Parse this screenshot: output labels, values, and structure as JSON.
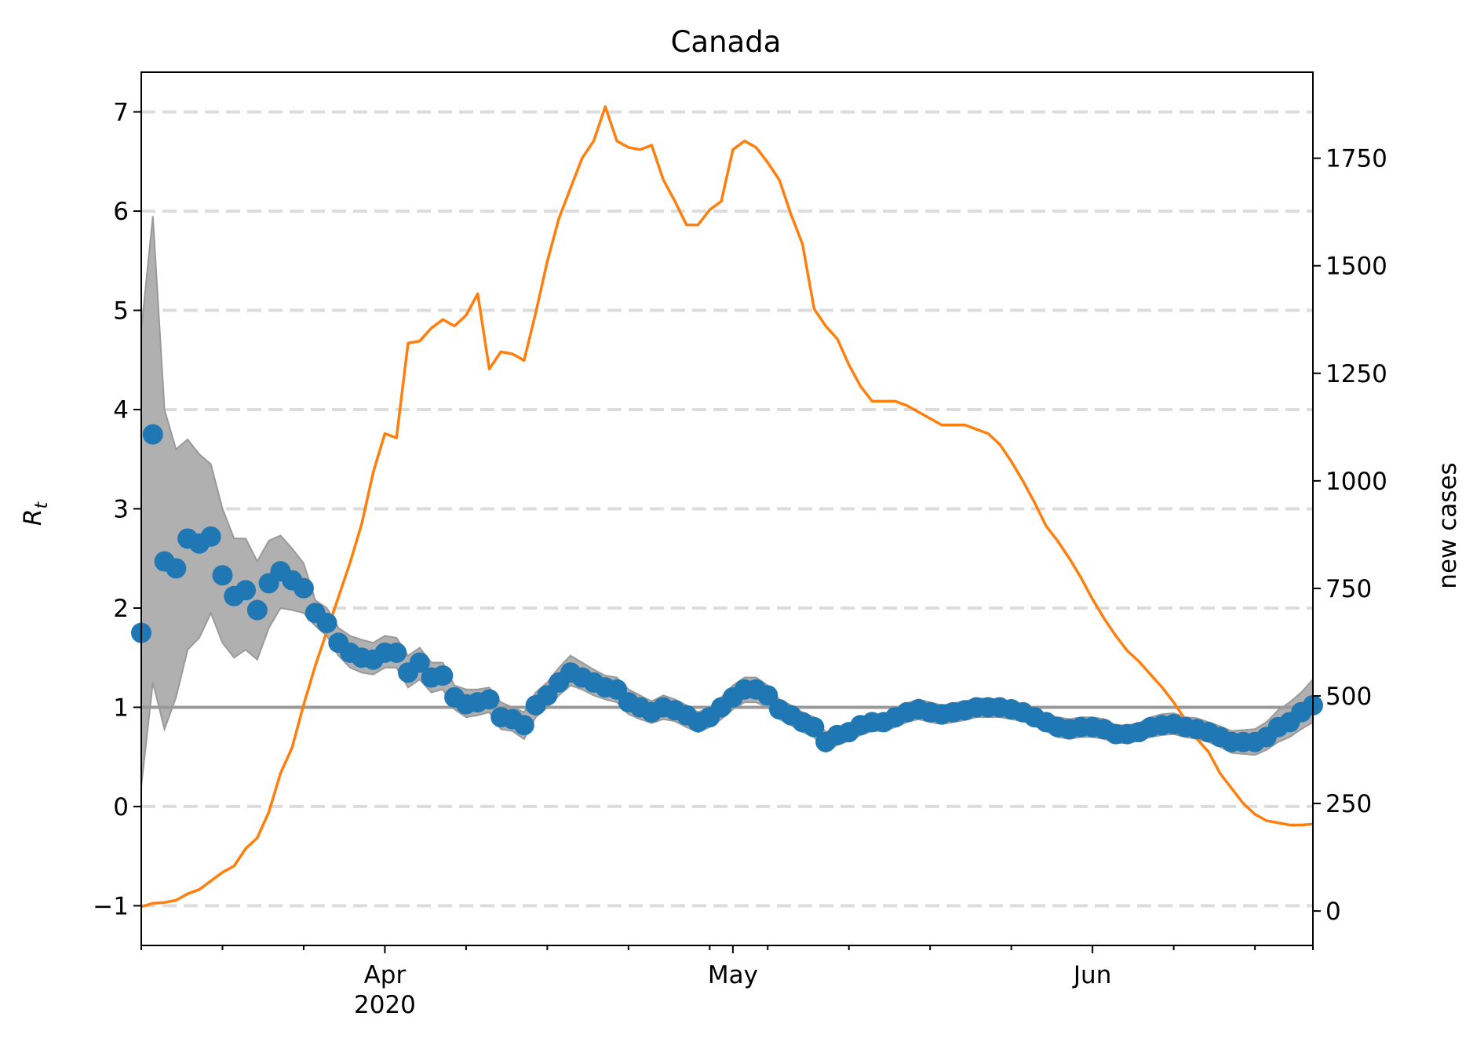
{
  "chart_data": {
    "type": "scatter",
    "title": "Canada",
    "ylabel_left": "R",
    "ylabel_left_subscript": "t",
    "ylabel_right": "new cases",
    "x_ticks": [
      {
        "label": "Apr",
        "sublabel": "2020",
        "day": 21
      },
      {
        "label": "May",
        "sublabel": "",
        "day": 51
      },
      {
        "label": "Jun",
        "sublabel": "",
        "day": 82
      }
    ],
    "x_minor_tick_days": [
      0,
      7,
      14,
      28,
      35,
      42,
      49,
      54,
      61,
      68,
      75,
      89,
      96,
      101
    ],
    "x_range_days": [
      0,
      101
    ],
    "start_date": "2020-03-10",
    "left_axis": {
      "ylim": [
        -1.4,
        7.4
      ],
      "ticks": [
        -1,
        0,
        1,
        2,
        3,
        4,
        5,
        6,
        7
      ],
      "tick_labels": [
        "−1",
        "0",
        "1",
        "2",
        "3",
        "4",
        "5",
        "6",
        "7"
      ]
    },
    "right_axis": {
      "ylim": [
        -80,
        1950
      ],
      "ticks": [
        0,
        250,
        500,
        750,
        1000,
        1250,
        1500,
        1750
      ],
      "tick_labels": [
        "0",
        "250",
        "500",
        "750",
        "1000",
        "1250",
        "1500",
        "1750"
      ]
    },
    "grid": "horizontal dashed at left-axis ticks",
    "reference_line": 1,
    "series": [
      {
        "kind": "scatter",
        "axis": "left",
        "color": "#1f77b4",
        "x_days": [
          0,
          1,
          2,
          3,
          4,
          5,
          6,
          7,
          8,
          9,
          10,
          11,
          12,
          13,
          14,
          15,
          16,
          17,
          18,
          19,
          20,
          21,
          22,
          23,
          24,
          25,
          26,
          27,
          28,
          29,
          30,
          31,
          32,
          33,
          34,
          35,
          36,
          37,
          38,
          39,
          40,
          41,
          42,
          43,
          44,
          45,
          46,
          47,
          48,
          49,
          50,
          51,
          52,
          53,
          54,
          55,
          56,
          57,
          58,
          59,
          60,
          61,
          62,
          63,
          64,
          65,
          66,
          67,
          68,
          69,
          70,
          71,
          72,
          73,
          74,
          75,
          76,
          77,
          78,
          79,
          80,
          81,
          82,
          83,
          84,
          85,
          86,
          87,
          88,
          89,
          90,
          91,
          92,
          93,
          94,
          95,
          96,
          97,
          98,
          99,
          100,
          101
        ],
        "values": [
          1.75,
          3.75,
          2.47,
          2.4,
          2.7,
          2.65,
          2.72,
          2.33,
          2.12,
          2.18,
          1.98,
          2.25,
          2.37,
          2.28,
          2.2,
          1.95,
          1.85,
          1.65,
          1.55,
          1.5,
          1.48,
          1.55,
          1.55,
          1.35,
          1.45,
          1.3,
          1.32,
          1.1,
          1.03,
          1.05,
          1.08,
          0.9,
          0.88,
          0.82,
          1.02,
          1.12,
          1.25,
          1.35,
          1.3,
          1.25,
          1.2,
          1.18,
          1.05,
          1.0,
          0.95,
          1.0,
          0.97,
          0.92,
          0.85,
          0.9,
          1.0,
          1.1,
          1.18,
          1.18,
          1.12,
          0.98,
          0.92,
          0.85,
          0.8,
          0.65,
          0.72,
          0.75,
          0.82,
          0.85,
          0.85,
          0.9,
          0.95,
          0.98,
          0.95,
          0.93,
          0.95,
          0.97,
          1.0,
          1.0,
          1.0,
          0.98,
          0.95,
          0.9,
          0.85,
          0.8,
          0.78,
          0.8,
          0.8,
          0.78,
          0.73,
          0.73,
          0.75,
          0.8,
          0.82,
          0.83,
          0.8,
          0.78,
          0.75,
          0.7,
          0.65,
          0.65,
          0.65,
          0.7,
          0.8,
          0.85,
          0.95,
          1.02
        ]
      },
      {
        "kind": "band",
        "axis": "left",
        "color": "#b0b0b0",
        "x_days": [
          0,
          1,
          2,
          3,
          4,
          5,
          6,
          7,
          8,
          9,
          10,
          11,
          12,
          13,
          14,
          15,
          16,
          17,
          18,
          19,
          20,
          21,
          22,
          23,
          24,
          25,
          26,
          27,
          28,
          29,
          30,
          31,
          32,
          33,
          34,
          35,
          36,
          37,
          38,
          39,
          40,
          41,
          42,
          43,
          44,
          45,
          46,
          47,
          48,
          49,
          50,
          51,
          52,
          53,
          54,
          55,
          56,
          57,
          58,
          59,
          60,
          61,
          62,
          63,
          64,
          65,
          66,
          67,
          68,
          69,
          70,
          71,
          72,
          73,
          74,
          75,
          76,
          77,
          78,
          79,
          80,
          81,
          82,
          83,
          84,
          85,
          86,
          87,
          88,
          89,
          90,
          91,
          92,
          93,
          94,
          95,
          96,
          97,
          98,
          99,
          100,
          101
        ],
        "upper": [
          4.8,
          5.95,
          4.0,
          3.6,
          3.7,
          3.55,
          3.45,
          3.0,
          2.7,
          2.7,
          2.47,
          2.68,
          2.73,
          2.6,
          2.45,
          2.08,
          2.0,
          1.8,
          1.72,
          1.68,
          1.65,
          1.72,
          1.7,
          1.52,
          1.6,
          1.45,
          1.45,
          1.22,
          1.18,
          1.18,
          1.2,
          1.05,
          1.0,
          0.95,
          1.15,
          1.25,
          1.4,
          1.52,
          1.45,
          1.38,
          1.32,
          1.3,
          1.18,
          1.12,
          1.06,
          1.12,
          1.08,
          1.02,
          0.95,
          1.0,
          1.1,
          1.22,
          1.3,
          1.3,
          1.22,
          1.08,
          1.02,
          0.95,
          0.9,
          0.75,
          0.8,
          0.83,
          0.9,
          0.93,
          0.92,
          0.98,
          1.04,
          1.08,
          1.05,
          1.02,
          1.04,
          1.06,
          1.09,
          1.09,
          1.08,
          1.06,
          1.03,
          0.98,
          0.93,
          0.9,
          0.88,
          0.9,
          0.9,
          0.88,
          0.82,
          0.82,
          0.84,
          0.9,
          0.93,
          0.94,
          0.9,
          0.89,
          0.85,
          0.81,
          0.76,
          0.77,
          0.78,
          0.85,
          0.97,
          1.05,
          1.15,
          1.28
        ],
        "lower": [
          0.2,
          1.25,
          0.78,
          1.1,
          1.58,
          1.7,
          1.95,
          1.65,
          1.5,
          1.58,
          1.48,
          1.8,
          2.0,
          1.98,
          1.95,
          1.82,
          1.72,
          1.52,
          1.4,
          1.35,
          1.33,
          1.4,
          1.4,
          1.2,
          1.28,
          1.15,
          1.18,
          0.98,
          0.9,
          0.92,
          0.95,
          0.78,
          0.76,
          0.68,
          0.9,
          1.0,
          1.12,
          1.22,
          1.18,
          1.12,
          1.08,
          1.05,
          0.93,
          0.88,
          0.84,
          0.88,
          0.86,
          0.8,
          0.75,
          0.8,
          0.88,
          0.98,
          1.05,
          1.05,
          1.0,
          0.88,
          0.82,
          0.75,
          0.7,
          0.55,
          0.62,
          0.66,
          0.72,
          0.76,
          0.76,
          0.8,
          0.85,
          0.88,
          0.85,
          0.83,
          0.85,
          0.87,
          0.9,
          0.9,
          0.9,
          0.88,
          0.86,
          0.81,
          0.76,
          0.7,
          0.68,
          0.7,
          0.7,
          0.68,
          0.64,
          0.64,
          0.66,
          0.7,
          0.72,
          0.73,
          0.7,
          0.68,
          0.65,
          0.6,
          0.54,
          0.53,
          0.52,
          0.57,
          0.65,
          0.7,
          0.78,
          0.85
        ]
      },
      {
        "kind": "line",
        "axis": "right",
        "color": "#ff7f0e",
        "x_days": [
          0,
          1,
          2,
          3,
          4,
          5,
          6,
          7,
          8,
          9,
          10,
          11,
          12,
          13,
          14,
          15,
          16,
          17,
          18,
          19,
          20,
          21,
          22,
          23,
          24,
          25,
          26,
          27,
          28,
          29,
          30,
          31,
          32,
          33,
          34,
          35,
          36,
          37,
          38,
          39,
          40,
          41,
          42,
          43,
          44,
          45,
          46,
          47,
          48,
          49,
          50,
          51,
          52,
          53,
          54,
          55,
          56,
          57,
          58,
          59,
          60,
          61,
          62,
          63,
          64,
          65,
          66,
          67,
          68,
          69,
          70,
          71,
          72,
          73,
          74,
          75,
          76,
          77,
          78,
          79,
          80,
          81,
          82,
          83,
          84,
          85,
          86,
          87,
          88,
          89,
          90,
          91,
          92,
          93,
          94,
          95,
          96,
          97,
          98,
          99,
          100,
          101
        ],
        "values": [
          10,
          18,
          20,
          25,
          40,
          50,
          70,
          90,
          105,
          145,
          170,
          230,
          320,
          380,
          480,
          570,
          650,
          730,
          810,
          900,
          1020,
          1110,
          1100,
          1320,
          1325,
          1355,
          1375,
          1360,
          1385,
          1435,
          1260,
          1300,
          1295,
          1280,
          1390,
          1510,
          1610,
          1680,
          1750,
          1790,
          1870,
          1790,
          1775,
          1770,
          1780,
          1700,
          1650,
          1595,
          1595,
          1630,
          1650,
          1770,
          1790,
          1775,
          1740,
          1700,
          1620,
          1550,
          1400,
          1360,
          1330,
          1270,
          1220,
          1185,
          1185,
          1185,
          1175,
          1160,
          1145,
          1130,
          1130,
          1130,
          1120,
          1110,
          1085,
          1045,
          1000,
          950,
          895,
          860,
          820,
          775,
          725,
          680,
          640,
          605,
          580,
          550,
          520,
          485,
          445,
          400,
          370,
          320,
          285,
          250,
          225,
          210,
          205,
          200,
          200,
          202
        ]
      }
    ]
  }
}
